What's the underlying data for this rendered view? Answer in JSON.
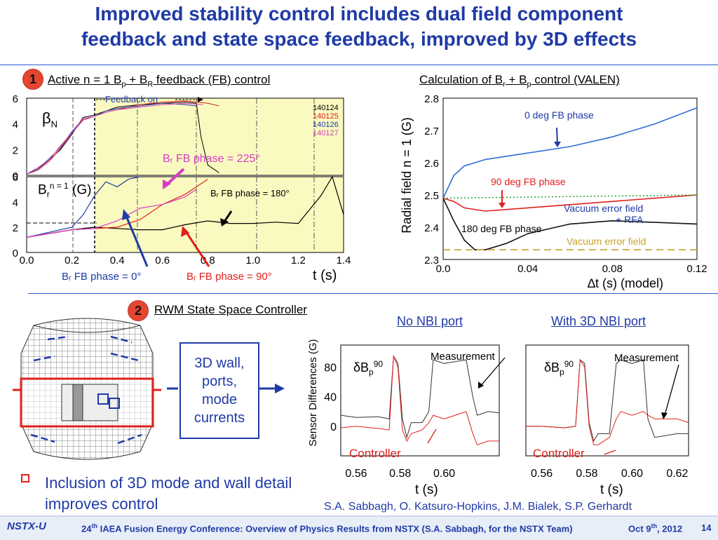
{
  "title": {
    "line1": "Improved stability control includes dual field component",
    "line2": "feedback and state space feedback, improved by 3D effects"
  },
  "section1": {
    "badge": "1",
    "title_parts": [
      "Active n = 1 B",
      "p",
      " + B",
      "R",
      " feedback (FB) control"
    ],
    "feedback_on": "Feedback on",
    "betaN": "β",
    "betaN_sub": "N",
    "br_label": "B",
    "br_sub": "r",
    "br_sup": "n = 1",
    "br_unit": "(G)",
    "shots": [
      {
        "id": "140124",
        "color": "#000000"
      },
      {
        "id": "140125",
        "color": "#e0201b"
      },
      {
        "id": "140126",
        "color": "#1f3aa6"
      },
      {
        "id": "140127",
        "color": "#d63cc2"
      }
    ],
    "ann_225": "Bᵣ FB phase = 225°",
    "ann_180": "Bᵣ FB phase = 180°",
    "ann_0": "Bᵣ FB phase = 0°",
    "ann_90": "Bᵣ FB phase = 90°",
    "xlabel": "t (s)",
    "colors": {
      "shade": "#fafac0",
      "blue": "#1f3aa6",
      "red": "#e0201b",
      "magenta": "#d63cc2"
    }
  },
  "section_calc": {
    "title_parts": [
      "Calculation of B",
      "r",
      " + B",
      "p",
      " control (VALEN)"
    ],
    "ylabel": "Radial field n = 1 (G)",
    "xlabel": "∆t (s)   (model)",
    "ann_0deg": "0 deg FB phase",
    "ann_90deg": "90 deg FB phase",
    "ann_180deg": "180 deg FB phase",
    "ann_vac_rfa": "Vacuum error field",
    "ann_vac_rfa2": "+ RFA",
    "ann_vac": "Vacuum error field",
    "colors": {
      "blue": "#2f6fd6",
      "red": "#e0201b",
      "black": "#111111",
      "green": "#2aa63a",
      "gold": "#c8a22a"
    }
  },
  "section2": {
    "badge": "2",
    "title": "RWM State Space Controller",
    "wall_box": [
      "3D wall,",
      "ports,",
      "mode",
      "currents"
    ],
    "no_nbi": "No NBI port",
    "with_nbi": "With 3D NBI port",
    "ylabel": "Sensor Differences (G)",
    "db_label": "δB",
    "db_sub": "p",
    "db_sup": "90",
    "measurement": "Measurement",
    "controller": "Controller",
    "xlabel": "t (s)"
  },
  "bullet": "Inclusion of 3D mode and wall detail improves control",
  "authors": "S.A. Sabbagh, O. Katsuro-Hopkins, J.M. Bialek, S.P. Gerhardt",
  "footer": {
    "logo": "NSTX-U",
    "conf_prefix": "24",
    "conf_sup": "th",
    "conf_rest": " IAEA Fusion Energy Conference: Overview of Physics Results from NSTX (S.A. Sabbagh, for the NSTX Team)",
    "date": "Oct 9",
    "date_sup": "th",
    "date_year": ", 2012",
    "page": "14"
  },
  "chart_data": [
    {
      "type": "line",
      "title": "",
      "ylabel": "βN",
      "xlim": [
        0.0,
        1.4
      ],
      "ylim": [
        0,
        6
      ],
      "yticks": [
        0,
        2,
        4,
        6
      ],
      "series": [
        {
          "name": "140124",
          "x": [
            0.0,
            0.05,
            0.1,
            0.15,
            0.2,
            0.25,
            0.3,
            0.35,
            0.4,
            0.5,
            0.6,
            0.7,
            0.75,
            0.77,
            0.8,
            0.85
          ],
          "y": [
            0.1,
            0.5,
            1.2,
            2.0,
            3.2,
            4.5,
            4.7,
            5.0,
            5.3,
            5.5,
            5.6,
            5.7,
            5.6,
            3.0,
            0.8,
            0.2
          ]
        },
        {
          "name": "140125",
          "x": [
            0.0,
            0.05,
            0.1,
            0.15,
            0.2,
            0.25,
            0.3,
            0.35,
            0.4,
            0.5,
            0.6,
            0.7,
            0.8,
            0.85
          ],
          "y": [
            0.1,
            0.4,
            1.1,
            2.1,
            3.3,
            4.3,
            4.6,
            4.9,
            5.1,
            5.5,
            5.7,
            5.8,
            5.6,
            5.4
          ]
        },
        {
          "name": "140126",
          "x": [
            0.0,
            0.05,
            0.1,
            0.15,
            0.2,
            0.25,
            0.3,
            0.35,
            0.4,
            0.5,
            0.6,
            0.7,
            0.75
          ],
          "y": [
            0.1,
            0.5,
            1.3,
            2.2,
            3.4,
            4.4,
            4.6,
            5.0,
            5.2,
            5.4,
            5.6,
            5.5,
            5.4
          ]
        },
        {
          "name": "140127",
          "x": [
            0.0,
            0.05,
            0.1,
            0.15,
            0.2,
            0.25,
            0.3,
            0.35,
            0.4,
            0.5,
            0.6,
            0.7,
            0.78
          ],
          "y": [
            0.1,
            0.6,
            1.2,
            2.3,
            3.3,
            4.4,
            4.6,
            4.9,
            5.1,
            5.3,
            5.5,
            5.6,
            5.5
          ]
        }
      ]
    },
    {
      "type": "line",
      "ylabel": "Br n=1 (G)",
      "xlabel": "t (s)",
      "xlim": [
        0.0,
        1.4
      ],
      "ylim": [
        0,
        6
      ],
      "xticks": [
        0.0,
        0.2,
        0.4,
        0.6,
        0.8,
        1.0,
        1.2,
        1.4
      ],
      "yticks": [
        0,
        2,
        4,
        6
      ],
      "series": [
        {
          "name": "140124",
          "x": [
            0.0,
            0.1,
            0.2,
            0.3,
            0.4,
            0.5,
            0.6,
            0.7,
            0.8,
            0.9,
            1.0,
            1.1,
            1.2,
            1.3,
            1.35,
            1.4
          ],
          "y": [
            1.2,
            1.5,
            1.8,
            2.0,
            1.9,
            1.8,
            1.8,
            2.2,
            2.5,
            2.3,
            2.3,
            2.4,
            2.3,
            4.5,
            6.0,
            3.0
          ]
        },
        {
          "name": "140125",
          "x": [
            0.0,
            0.1,
            0.2,
            0.3,
            0.4,
            0.5,
            0.6,
            0.7,
            0.75,
            0.8
          ],
          "y": [
            1.2,
            1.5,
            1.8,
            1.9,
            2.0,
            2.6,
            3.8,
            4.6,
            5.2,
            5.8
          ]
        },
        {
          "name": "140126",
          "x": [
            0.0,
            0.1,
            0.2,
            0.25,
            0.3,
            0.35,
            0.4,
            0.45,
            0.5
          ],
          "y": [
            1.2,
            1.6,
            2.0,
            3.0,
            4.5,
            5.6,
            5.2,
            5.8,
            6.0
          ]
        },
        {
          "name": "140127",
          "x": [
            0.0,
            0.1,
            0.2,
            0.3,
            0.4,
            0.5,
            0.6,
            0.7,
            0.75
          ],
          "y": [
            1.2,
            1.5,
            1.8,
            1.9,
            2.5,
            3.5,
            3.8,
            4.4,
            5.0
          ]
        }
      ]
    },
    {
      "type": "line",
      "xlabel": "∆t (s)   (model)",
      "ylabel": "Radial field n = 1 (G)",
      "xlim": [
        0.0,
        0.12
      ],
      "ylim": [
        2.3,
        2.8
      ],
      "xticks": [
        0.0,
        0.04,
        0.08,
        0.12
      ],
      "yticks": [
        2.3,
        2.4,
        2.5,
        2.6,
        2.7,
        2.8
      ],
      "series": [
        {
          "name": "0 deg FB phase",
          "x": [
            0.0,
            0.005,
            0.01,
            0.02,
            0.04,
            0.06,
            0.08,
            0.1,
            0.12
          ],
          "y": [
            2.49,
            2.56,
            2.59,
            2.61,
            2.63,
            2.65,
            2.68,
            2.72,
            2.77
          ]
        },
        {
          "name": "90 deg FB phase",
          "x": [
            0.0,
            0.005,
            0.01,
            0.02,
            0.03,
            0.04,
            0.06,
            0.08,
            0.1,
            0.12
          ],
          "y": [
            2.49,
            2.48,
            2.46,
            2.45,
            2.455,
            2.46,
            2.47,
            2.48,
            2.49,
            2.5
          ]
        },
        {
          "name": "180 deg FB phase",
          "x": [
            0.0,
            0.005,
            0.01,
            0.015,
            0.02,
            0.03,
            0.04,
            0.06,
            0.08,
            0.1,
            0.12
          ],
          "y": [
            2.49,
            2.42,
            2.36,
            2.33,
            2.33,
            2.35,
            2.38,
            2.41,
            2.42,
            2.415,
            2.41
          ]
        },
        {
          "name": "Vacuum error field + RFA",
          "x": [
            0.0,
            0.12
          ],
          "y": [
            2.49,
            2.5
          ]
        },
        {
          "name": "Vacuum error field",
          "x": [
            0.0,
            0.12
          ],
          "y": [
            2.33,
            2.33
          ]
        }
      ]
    },
    {
      "type": "line",
      "title": "No NBI port",
      "xlabel": "t (s)",
      "ylabel": "Sensor Differences (G)",
      "xlim": [
        0.553,
        0.625
      ],
      "ylim": [
        -40,
        110
      ],
      "xticks": [
        0.56,
        0.58,
        0.6
      ],
      "yticks": [
        0,
        40,
        80
      ],
      "series": [
        {
          "name": "Measurement",
          "x": [
            0.553,
            0.56,
            0.57,
            0.575,
            0.577,
            0.579,
            0.581,
            0.583,
            0.585,
            0.59,
            0.593,
            0.595,
            0.6,
            0.61,
            0.613,
            0.615,
            0.62,
            0.625
          ],
          "y": [
            15,
            12,
            13,
            10,
            95,
            85,
            10,
            -15,
            5,
            5,
            20,
            90,
            85,
            90,
            40,
            15,
            20,
            18
          ]
        },
        {
          "name": "Controller",
          "x": [
            0.553,
            0.56,
            0.57,
            0.575,
            0.577,
            0.579,
            0.581,
            0.583,
            0.585,
            0.59,
            0.593,
            0.595,
            0.6,
            0.61,
            0.613,
            0.615,
            0.62,
            0.625
          ],
          "y": [
            -2,
            0,
            -3,
            -5,
            95,
            80,
            -5,
            -20,
            -10,
            -5,
            5,
            15,
            10,
            20,
            -10,
            -25,
            -20,
            -20
          ]
        }
      ]
    },
    {
      "type": "line",
      "title": "With 3D NBI port",
      "xlabel": "t (s)",
      "xlim": [
        0.553,
        0.625
      ],
      "ylim": [
        -40,
        110
      ],
      "xticks": [
        0.56,
        0.58,
        0.6,
        0.62
      ],
      "series": [
        {
          "name": "Measurement",
          "x": [
            0.553,
            0.56,
            0.57,
            0.575,
            0.577,
            0.579,
            0.581,
            0.583,
            0.585,
            0.59,
            0.593,
            0.595,
            0.6,
            0.605,
            0.607,
            0.61,
            0.62,
            0.625
          ],
          "y": [
            0,
            0,
            -2,
            0,
            90,
            85,
            5,
            -20,
            -10,
            -10,
            85,
            90,
            85,
            90,
            10,
            -15,
            -10,
            -10
          ]
        },
        {
          "name": "Controller",
          "x": [
            0.553,
            0.56,
            0.57,
            0.575,
            0.577,
            0.579,
            0.581,
            0.583,
            0.585,
            0.59,
            0.593,
            0.595,
            0.6,
            0.605,
            0.607,
            0.61,
            0.62,
            0.625
          ],
          "y": [
            0,
            0,
            -2,
            0,
            90,
            80,
            0,
            -25,
            -25,
            -15,
            10,
            20,
            15,
            20,
            15,
            10,
            10,
            5
          ]
        }
      ]
    }
  ]
}
